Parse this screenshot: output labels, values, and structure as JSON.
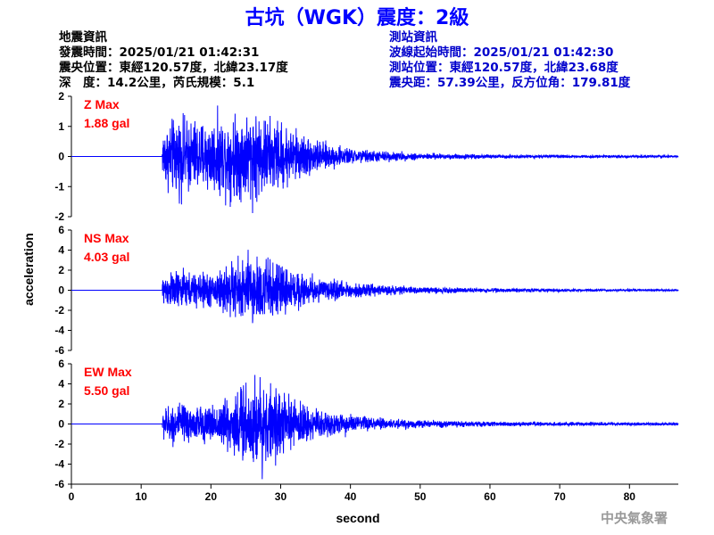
{
  "header": {
    "title": "古坑（WGK）震度：2級",
    "left_lines": [
      "地震資訊",
      "發震時間：2025/01/21 01:42:31",
      "震央位置：東經120.57度，北緯23.17度",
      "深　度：14.2公里，芮氏規模：5.1"
    ],
    "right_lines": [
      "測站資訊",
      "波線起始時間：2025/01/21 01:42:30",
      "測站位置：東經120.57度，北緯23.68度",
      "震央距：57.39公里，反方位角：179.81度"
    ]
  },
  "footer": {
    "credit": "中央氣象署"
  },
  "colors": {
    "title": "#0000ff",
    "trace": "#0000ff",
    "annotation": "#ff0000",
    "credit": "#9a9a9a"
  },
  "chart_data": {
    "type": "line",
    "xlabel": "second",
    "ylabel": "acceleration",
    "xlim": [
      0,
      87
    ],
    "xticks": [
      0,
      10,
      20,
      30,
      40,
      50,
      60,
      70,
      80
    ],
    "panels": [
      {
        "name": "Z",
        "annotation": [
          "Z Max",
          "1.88 gal"
        ],
        "ylim": [
          -2,
          2
        ],
        "yticks": [
          -2,
          -1,
          0,
          1,
          2
        ],
        "onset_s": 13.0,
        "peak_abs_gal": 1.88,
        "envelope": [
          [
            0,
            0
          ],
          [
            12.9,
            0
          ],
          [
            13.2,
            1.2
          ],
          [
            15,
            1.5
          ],
          [
            20,
            1.4
          ],
          [
            23,
            1.6
          ],
          [
            26,
            1.8
          ],
          [
            28,
            1.5
          ],
          [
            30,
            1.3
          ],
          [
            33,
            0.9
          ],
          [
            36,
            0.55
          ],
          [
            40,
            0.3
          ],
          [
            45,
            0.2
          ],
          [
            50,
            0.13
          ],
          [
            60,
            0.08
          ],
          [
            70,
            0.06
          ],
          [
            80,
            0.05
          ],
          [
            87,
            0.04
          ]
        ]
      },
      {
        "name": "NS",
        "annotation": [
          "NS Max",
          "4.03 gal"
        ],
        "ylim": [
          -6,
          6
        ],
        "yticks": [
          -6,
          -4,
          -2,
          0,
          2,
          4,
          6
        ],
        "onset_s": 13.0,
        "peak_abs_gal": 4.03,
        "envelope": [
          [
            0,
            0
          ],
          [
            12.9,
            0
          ],
          [
            13.2,
            1.6
          ],
          [
            15,
            1.8
          ],
          [
            20,
            1.6
          ],
          [
            23,
            2.6
          ],
          [
            26,
            3.6
          ],
          [
            28,
            3.1
          ],
          [
            30,
            2.4
          ],
          [
            33,
            1.6
          ],
          [
            36,
            1.1
          ],
          [
            40,
            0.7
          ],
          [
            45,
            0.45
          ],
          [
            50,
            0.3
          ],
          [
            60,
            0.2
          ],
          [
            70,
            0.15
          ],
          [
            80,
            0.1
          ],
          [
            87,
            0.08
          ]
        ]
      },
      {
        "name": "EW",
        "annotation": [
          "EW Max",
          "5.50 gal"
        ],
        "ylim": [
          -6,
          6
        ],
        "yticks": [
          -6,
          -4,
          -2,
          0,
          2,
          4,
          6
        ],
        "onset_s": 13.0,
        "peak_abs_gal": 5.5,
        "envelope": [
          [
            0,
            0
          ],
          [
            12.9,
            0
          ],
          [
            13.2,
            1.0
          ],
          [
            15,
            1.3
          ],
          [
            20,
            1.1
          ],
          [
            23,
            2.0
          ],
          [
            26,
            3.3
          ],
          [
            28,
            2.6
          ],
          [
            30,
            1.9
          ],
          [
            33,
            1.3
          ],
          [
            36,
            0.9
          ],
          [
            40,
            0.6
          ],
          [
            45,
            0.35
          ],
          [
            50,
            0.25
          ],
          [
            60,
            0.15
          ],
          [
            70,
            0.12
          ],
          [
            80,
            0.1
          ],
          [
            87,
            0.08
          ]
        ]
      }
    ]
  }
}
